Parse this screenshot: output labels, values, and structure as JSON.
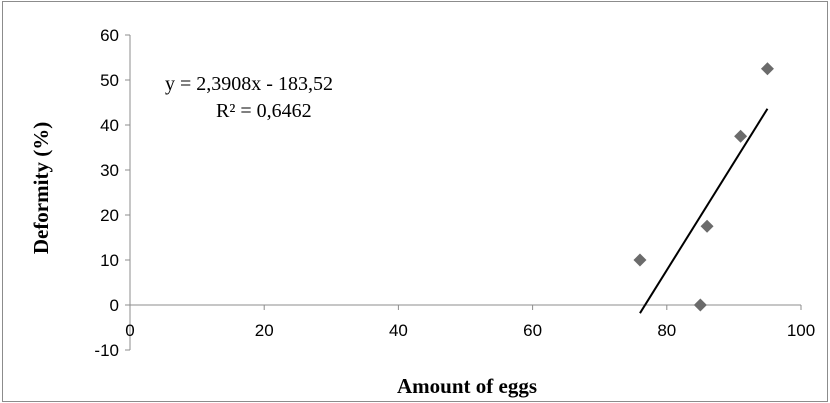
{
  "chart_data": {
    "type": "scatter",
    "xlabel": "Amount of eggs",
    "ylabel": "Deformity (%)",
    "xlim": [
      0,
      100
    ],
    "ylim": [
      -10,
      60
    ],
    "x_ticks": [
      "0",
      "20",
      "40",
      "60",
      "80",
      "100"
    ],
    "y_ticks": [
      "-10",
      "0",
      "10",
      "20",
      "30",
      "40",
      "50",
      "60"
    ],
    "grid": false,
    "legend": "none",
    "series": [
      {
        "x": [
          76,
          85,
          86,
          91,
          95
        ],
        "y": [
          10,
          0,
          17.5,
          37.5,
          52.5
        ],
        "color": "#6b6b6b",
        "marker": "diamond"
      }
    ],
    "trendline": {
      "slope": 2.3908,
      "intercept": -183.52,
      "x_range": [
        76,
        95
      ],
      "color": "#000000"
    },
    "annotations": {
      "equation": "y = 2,3908x - 183,52",
      "r_squared": "R² = 0,6462"
    }
  }
}
